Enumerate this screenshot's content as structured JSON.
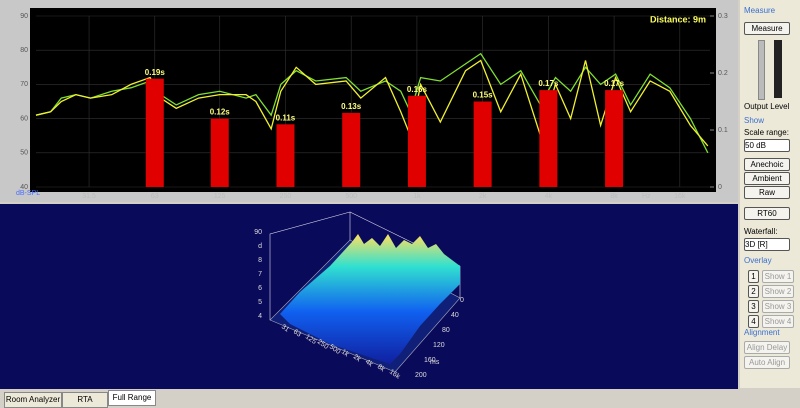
{
  "chart_data": {
    "type": "line",
    "annotation": "Distance: 9m",
    "y_label": "dB-SPL",
    "x_label": "Hz",
    "log_x": true,
    "xlim": [
      18,
      22000
    ],
    "xticks": [
      31.5,
      63,
      125,
      250,
      500,
      {
        "value": 1000,
        "label": "1k"
      },
      {
        "value": 2000,
        "label": "2k"
      },
      {
        "value": 4000,
        "label": "4k"
      },
      {
        "value": 8000,
        "label": "8k"
      },
      {
        "value": 16000,
        "label": "16k"
      }
    ],
    "ylim": [
      40,
      90
    ],
    "yticks": [
      40,
      50,
      60,
      70,
      80,
      90
    ],
    "y2lim": [
      0,
      0.3
    ],
    "y2ticks": [
      0,
      0.1,
      0.2,
      0.3
    ],
    "grid": true,
    "series": [
      {
        "color": "#7fe030",
        "x": [
          18,
          21,
          23.5,
          27.4,
          32,
          40,
          49,
          60,
          67,
          79,
          100,
          125,
          165,
          183,
          215,
          238,
          280,
          344,
          474,
          553,
          718,
          843,
          933,
          1040,
          1280,
          1670,
          1960,
          2420,
          2990,
          3680,
          4310,
          5060,
          5920,
          6940,
          8130,
          9520,
          11700,
          14400,
          17900,
          21500
        ],
        "values": [
          61,
          62,
          66,
          67,
          66,
          68,
          69,
          71,
          67,
          64,
          67,
          68,
          66,
          67,
          61,
          70,
          74,
          71,
          72,
          68,
          71,
          68,
          62,
          72,
          71,
          76,
          79,
          70,
          74,
          64,
          72,
          68,
          75,
          70,
          73,
          64,
          73,
          69,
          60,
          50
        ]
      },
      {
        "color": "#f0f030",
        "x": [
          18,
          21,
          23.5,
          27.4,
          32,
          40,
          49,
          60,
          67,
          79,
          100,
          125,
          165,
          183,
          215,
          238,
          280,
          344,
          474,
          553,
          718,
          843,
          933,
          1040,
          1280,
          1670,
          1960,
          2420,
          2990,
          3680,
          4310,
          5060,
          5920,
          6940,
          8130,
          9520,
          11700,
          14400,
          17900,
          21500
        ],
        "values": [
          61,
          62,
          65,
          67,
          66,
          67,
          70,
          72,
          66,
          63,
          66,
          67,
          67,
          65,
          57,
          68,
          75,
          70,
          71,
          66,
          72,
          62,
          55,
          70,
          59,
          74,
          77,
          62,
          73,
          55,
          70,
          60,
          77,
          58,
          72,
          62,
          71,
          68,
          58,
          52
        ]
      },
      {
        "type": "bar",
        "axis": "y2",
        "color": "#e00000",
        "x": [
          63,
          125,
          250,
          500,
          1000,
          2000,
          4000,
          8000
        ],
        "values": [
          0.19,
          0.12,
          0.11,
          0.13,
          0.16,
          0.15,
          0.17,
          0.17
        ],
        "value_labels": [
          "0.19s",
          "0.12s",
          "0.11s",
          "0.13s",
          "0.16s",
          "0.15s",
          "0.17s",
          "0.17s"
        ]
      }
    ]
  },
  "waterfall": {
    "z_labels": [
      "90",
      "d",
      "8",
      "7",
      "6",
      "5",
      "4"
    ],
    "freq_labels": [
      "31",
      "63",
      "125",
      "250",
      "500",
      "1k",
      "2k",
      "4k",
      "8k",
      "16k"
    ],
    "time_labels": [
      "0",
      "40",
      "80",
      "120",
      "160",
      "200"
    ],
    "time_unit": "ms"
  },
  "panel": {
    "measure_title": "Measure",
    "measure_button": "Measure",
    "output_level": "Output Level",
    "show_title": "Show",
    "scale_range": "Scale range:",
    "scale_value": "50 dB",
    "anechoic": "Anechoic",
    "ambient": "Ambient",
    "raw": "Raw",
    "rt60": "RT60",
    "waterfall": "Waterfall:",
    "waterfall_value": "3D [R]",
    "overlay_title": "Overlay",
    "overlays": [
      {
        "num": "1",
        "label": "Show 1"
      },
      {
        "num": "2",
        "label": "Show 2"
      },
      {
        "num": "3",
        "label": "Show 3"
      },
      {
        "num": "4",
        "label": "Show 4"
      }
    ],
    "alignment_title": "Alignment",
    "align_delay": "Align Delay",
    "auto_align": "Auto Align"
  },
  "tabs": [
    "Room Analyzer",
    "RTA",
    "Full Range"
  ]
}
